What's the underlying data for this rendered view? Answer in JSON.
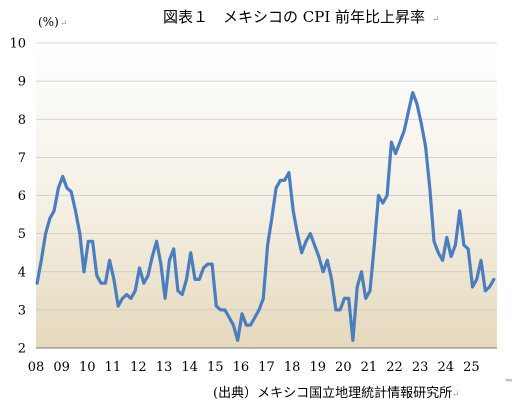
{
  "chart_data": {
    "type": "line",
    "title": "図表１　メキシコの CPI 前年比上昇率",
    "ylabel": "(%)",
    "xlabel": "",
    "ylim": [
      2,
      10
    ],
    "y_ticks": [
      "2",
      "3",
      "4",
      "5",
      "6",
      "7",
      "8",
      "9",
      "10"
    ],
    "x_ticks": [
      "08",
      "09",
      "10",
      "11",
      "12",
      "13",
      "14",
      "15",
      "16",
      "17",
      "18",
      "19",
      "20",
      "21",
      "22",
      "23",
      "24",
      "25"
    ],
    "x_range": [
      "2008-01",
      "2025-12"
    ],
    "grid": "horizontal",
    "legend": "none",
    "series": [
      {
        "color": "#4a7ebf",
        "x": [
          "2008-01",
          "2008-03",
          "2008-05",
          "2008-07",
          "2008-09",
          "2008-11",
          "2009-01",
          "2009-03",
          "2009-05",
          "2009-07",
          "2009-09",
          "2009-11",
          "2010-01",
          "2010-03",
          "2010-05",
          "2010-07",
          "2010-09",
          "2010-11",
          "2011-01",
          "2011-03",
          "2011-05",
          "2011-07",
          "2011-09",
          "2011-11",
          "2012-01",
          "2012-03",
          "2012-05",
          "2012-07",
          "2012-09",
          "2012-11",
          "2013-01",
          "2013-03",
          "2013-05",
          "2013-07",
          "2013-09",
          "2013-11",
          "2014-01",
          "2014-03",
          "2014-05",
          "2014-07",
          "2014-09",
          "2014-11",
          "2015-01",
          "2015-03",
          "2015-05",
          "2015-07",
          "2015-09",
          "2015-11",
          "2016-01",
          "2016-03",
          "2016-05",
          "2016-07",
          "2016-09",
          "2016-11",
          "2017-01",
          "2017-03",
          "2017-05",
          "2017-07",
          "2017-09",
          "2017-11",
          "2018-01",
          "2018-03",
          "2018-05",
          "2018-07",
          "2018-09",
          "2018-11",
          "2019-01",
          "2019-03",
          "2019-05",
          "2019-07",
          "2019-09",
          "2019-11",
          "2020-01",
          "2020-03",
          "2020-05",
          "2020-07",
          "2020-09",
          "2020-11",
          "2021-01",
          "2021-03",
          "2021-05",
          "2021-07",
          "2021-09",
          "2021-11",
          "2022-01",
          "2022-03",
          "2022-05",
          "2022-07",
          "2022-09",
          "2022-11",
          "2023-01",
          "2023-03",
          "2023-05",
          "2023-07",
          "2023-09",
          "2023-11",
          "2024-01",
          "2024-03",
          "2024-05",
          "2024-07",
          "2024-09",
          "2024-11",
          "2025-01",
          "2025-03",
          "2025-05",
          "2025-07",
          "2025-09",
          "2025-11"
        ],
        "values": [
          3.7,
          4.3,
          5.0,
          5.4,
          5.6,
          6.2,
          6.5,
          6.2,
          6.1,
          5.6,
          5.0,
          4.0,
          4.8,
          4.8,
          3.9,
          3.7,
          3.7,
          4.3,
          3.8,
          3.1,
          3.3,
          3.4,
          3.3,
          3.5,
          4.1,
          3.7,
          3.9,
          4.4,
          4.8,
          4.2,
          3.3,
          4.3,
          4.6,
          3.5,
          3.4,
          3.8,
          4.5,
          3.8,
          3.8,
          4.1,
          4.2,
          4.2,
          3.1,
          3.0,
          3.0,
          2.8,
          2.6,
          2.2,
          2.9,
          2.6,
          2.6,
          2.8,
          3.0,
          3.3,
          4.7,
          5.4,
          6.2,
          6.4,
          6.4,
          6.6,
          5.6,
          5.0,
          4.5,
          4.8,
          5.0,
          4.7,
          4.4,
          4.0,
          4.3,
          3.8,
          3.0,
          3.0,
          3.3,
          3.3,
          2.2,
          3.6,
          4.0,
          3.3,
          3.5,
          4.7,
          6.0,
          5.8,
          6.0,
          7.4,
          7.1,
          7.4,
          7.7,
          8.2,
          8.7,
          8.4,
          7.9,
          7.3,
          6.2,
          4.8,
          4.5,
          4.3,
          4.9,
          4.4,
          4.7,
          5.6,
          4.7,
          4.6,
          3.6,
          3.8,
          4.3,
          3.5,
          3.6,
          3.8
        ]
      }
    ],
    "source": "(出典）メキシコ国立地理統計情報研究所"
  },
  "marks": {
    "ret": "↵",
    "arrow": "⇐"
  }
}
